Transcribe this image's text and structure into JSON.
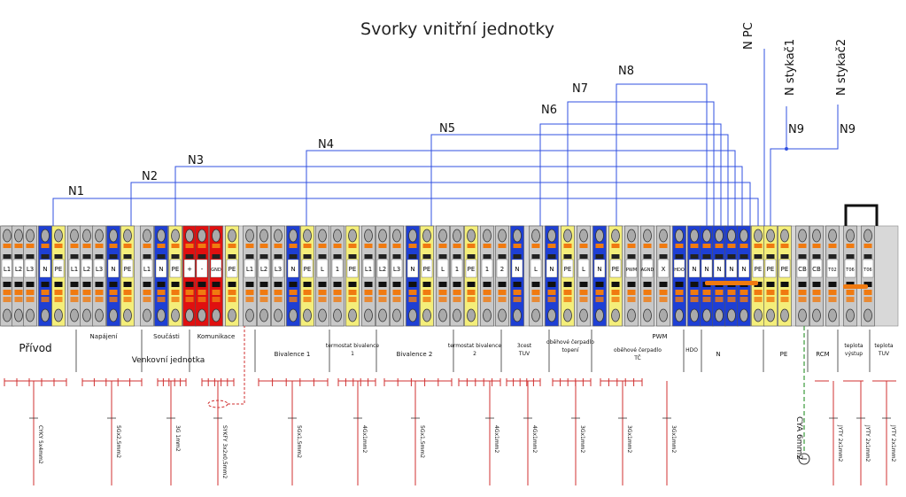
{
  "title": "Svorky vnitřní jednotky",
  "colors": {
    "grey": "#c8c8c8",
    "blue": "#1e3fd4",
    "yellow": "#f4ee7a",
    "red": "#e01010",
    "orange": "#f07a10",
    "wire_blue": "#3050e0",
    "cable_red": "#d03030",
    "pe_green": "#3a9a3a"
  },
  "terminals": [
    {
      "label": "L1",
      "color": "grey"
    },
    {
      "label": "L2",
      "color": "grey"
    },
    {
      "label": "L3",
      "color": "grey"
    },
    {
      "label": "N",
      "color": "blue"
    },
    {
      "label": "PE",
      "color": "yellow"
    },
    {
      "label": "L1",
      "color": "grey"
    },
    {
      "label": "L2",
      "color": "grey"
    },
    {
      "label": "L3",
      "color": "grey"
    },
    {
      "label": "N",
      "color": "blue"
    },
    {
      "label": "PE",
      "color": "yellow"
    },
    {
      "label": "L1",
      "color": "grey"
    },
    {
      "label": "N",
      "color": "blue"
    },
    {
      "label": "PE",
      "color": "yellow"
    },
    {
      "label": "+",
      "color": "red"
    },
    {
      "label": "-",
      "color": "red"
    },
    {
      "label": "GND",
      "color": "red"
    },
    {
      "label": "PE",
      "color": "yellow"
    },
    {
      "label": "L1",
      "color": "grey"
    },
    {
      "label": "L2",
      "color": "grey"
    },
    {
      "label": "L3",
      "color": "grey"
    },
    {
      "label": "N",
      "color": "blue"
    },
    {
      "label": "PE",
      "color": "yellow"
    },
    {
      "label": "L",
      "color": "grey"
    },
    {
      "label": "1",
      "color": "grey"
    },
    {
      "label": "PE",
      "color": "yellow"
    },
    {
      "label": "L1",
      "color": "grey"
    },
    {
      "label": "L2",
      "color": "grey"
    },
    {
      "label": "L3",
      "color": "grey"
    },
    {
      "label": "N",
      "color": "blue"
    },
    {
      "label": "PE",
      "color": "yellow"
    },
    {
      "label": "L",
      "color": "grey"
    },
    {
      "label": "1",
      "color": "grey"
    },
    {
      "label": "PE",
      "color": "yellow"
    },
    {
      "label": "1",
      "color": "grey"
    },
    {
      "label": "2",
      "color": "grey"
    },
    {
      "label": "N",
      "color": "blue"
    },
    {
      "label": "L",
      "color": "grey"
    },
    {
      "label": "N",
      "color": "blue"
    },
    {
      "label": "PE",
      "color": "yellow"
    },
    {
      "label": "L",
      "color": "grey"
    },
    {
      "label": "N",
      "color": "blue"
    },
    {
      "label": "PE",
      "color": "yellow"
    },
    {
      "label": "PWM",
      "color": "grey"
    },
    {
      "label": "AGND",
      "color": "grey"
    },
    {
      "label": "X",
      "color": "grey"
    },
    {
      "label": "HDO",
      "color": "blue"
    },
    {
      "label": "N",
      "color": "blue"
    },
    {
      "label": "N",
      "color": "blue"
    },
    {
      "label": "N",
      "color": "blue"
    },
    {
      "label": "N",
      "color": "blue"
    },
    {
      "label": "N",
      "color": "blue"
    },
    {
      "label": "PE",
      "color": "yellow"
    },
    {
      "label": "PE",
      "color": "yellow"
    },
    {
      "label": "PE",
      "color": "yellow"
    },
    {
      "label": "CB",
      "color": "grey"
    },
    {
      "label": "CB",
      "color": "grey"
    },
    {
      "label": "T02",
      "color": "grey"
    },
    {
      "label": "T06",
      "color": "grey"
    },
    {
      "label": "T06",
      "color": "grey"
    }
  ],
  "groups": [
    {
      "label": "Přívod",
      "big": true
    },
    {
      "label": "Napájení"
    },
    {
      "label": "Součásti"
    },
    {
      "label": "Komunikace"
    },
    {
      "label": "Venkovní jednotka"
    },
    {
      "label": "Bivalence 1"
    },
    {
      "label": "termostat bivalence 1"
    },
    {
      "label": "Bivalence 2"
    },
    {
      "label": "termostat bivalence 2"
    },
    {
      "label": "3cest TUV"
    },
    {
      "label": "oběhové čerpadlo topení"
    },
    {
      "label": "PWM"
    },
    {
      "label": "oběhové čerpadlo TČ"
    },
    {
      "label": "HDO"
    },
    {
      "label": "N"
    },
    {
      "label": "PE"
    },
    {
      "label": "RCM"
    },
    {
      "label": "teplota výstup"
    },
    {
      "label": "teplota TUV"
    }
  ],
  "neutrals": [
    "N1",
    "N2",
    "N3",
    "N4",
    "N5",
    "N6",
    "N7",
    "N8",
    "N9",
    "N9",
    "N PC",
    "N stykač1",
    "N stykač2"
  ],
  "cables": [
    "CYKY 5x4mm2",
    "5Gx2,5mm2",
    "3G 1mm2",
    "SYKFY 3x2x0,5mm2",
    "5Gx1,5mm2",
    "4Gx1mm2",
    "5Gx1,5mm2",
    "4Gx1mm2",
    "4Gx1mm2",
    "3Gx1mm2",
    "3Gx1mm2",
    "3Gx1mm2",
    "CYA 6mm2",
    "JYTY 2x1mm2",
    "JYTY 2x1mm2",
    "JYTY 2x1mm2"
  ]
}
